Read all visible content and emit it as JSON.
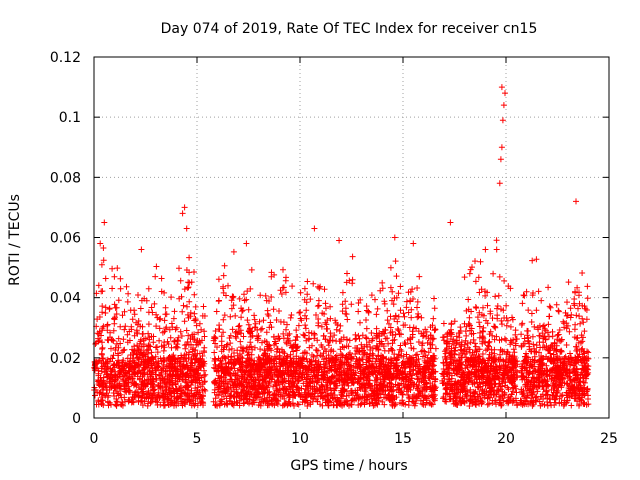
{
  "chart_data": {
    "type": "scatter",
    "title": "Day 074 of 2019, Rate Of TEC Index for receiver cn15",
    "xlabel": "GPS time / hours",
    "ylabel": "ROTI / TECUs",
    "xlim": [
      0,
      25
    ],
    "ylim": [
      0,
      0.12
    ],
    "xticks": [
      0,
      5,
      10,
      15,
      20,
      25
    ],
    "xtick_labels": [
      "0",
      "5",
      "10",
      "15",
      "20",
      "25"
    ],
    "yticks": [
      0,
      0.02,
      0.04,
      0.06,
      0.08,
      0.1,
      0.12
    ],
    "ytick_labels": [
      "0",
      "0.02",
      "0.04",
      "0.06",
      "0.08",
      "0.1",
      "0.12"
    ],
    "grid": true,
    "marker": "+",
    "color": "#ff0000",
    "series": [
      {
        "name": "ROTI",
        "note": "dense band of points between 0.003 and ~0.05 TECU across 0-24 h; outlier peaks listed",
        "x": [
          0.3,
          0.5,
          2.3,
          4.3,
          4.4,
          4.5,
          7.4,
          10.7,
          11.9,
          14.6,
          15.5,
          17.3,
          19.0,
          19.55,
          19.7,
          19.75,
          19.8,
          19.85,
          19.9,
          19.95,
          19.8,
          23.4
        ],
        "y": [
          0.058,
          0.065,
          0.056,
          0.068,
          0.07,
          0.063,
          0.058,
          0.063,
          0.059,
          0.06,
          0.058,
          0.065,
          0.056,
          0.056,
          0.078,
          0.086,
          0.09,
          0.099,
          0.104,
          0.108,
          0.11,
          0.072
        ]
      }
    ]
  }
}
